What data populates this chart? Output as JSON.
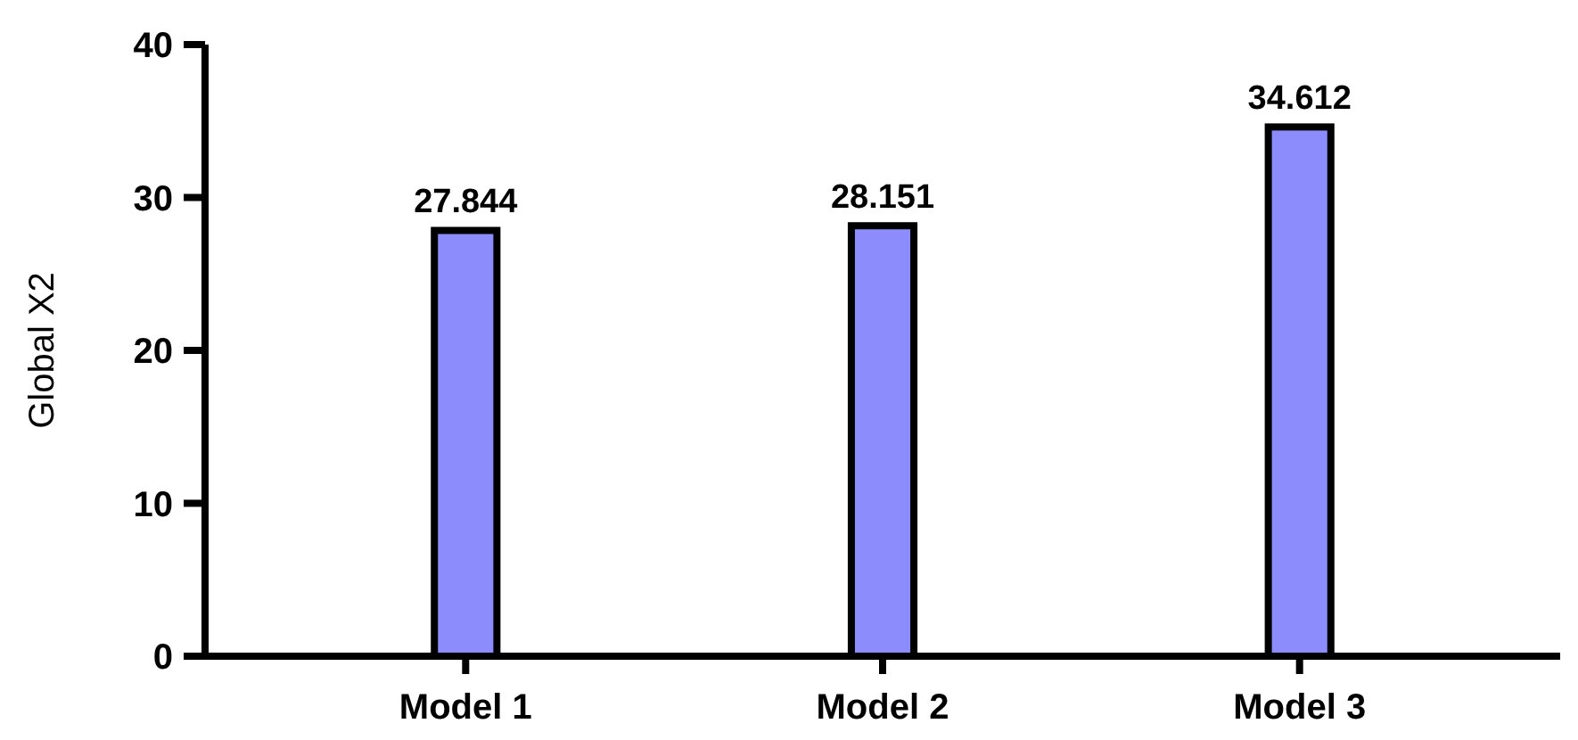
{
  "chart_data": {
    "type": "bar",
    "ylabel": "Global X2",
    "categories": [
      "Model 1",
      "Model 2",
      "Model 3"
    ],
    "values": [
      27.844,
      28.151,
      34.612
    ],
    "color": "#8c8cfc",
    "ylim": [
      0,
      40
    ],
    "yticks": [
      0,
      10,
      20,
      30,
      40
    ],
    "data_labels": true,
    "grid": false
  }
}
